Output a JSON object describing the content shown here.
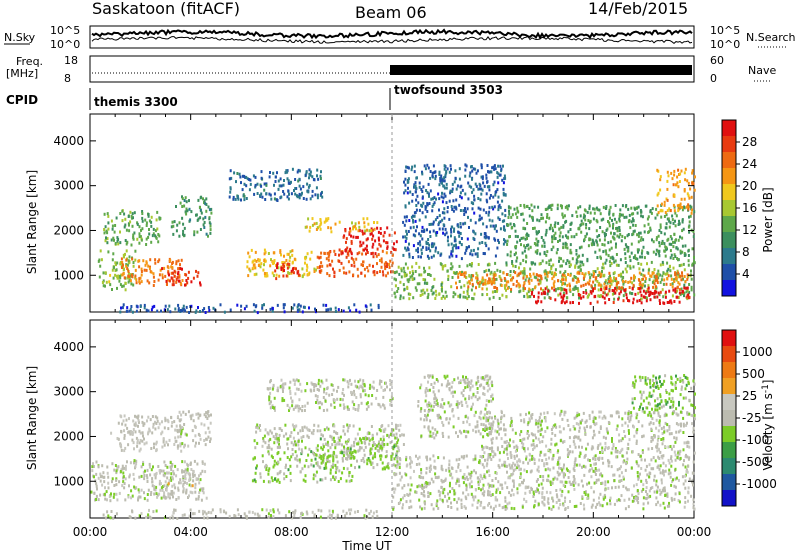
{
  "header": {
    "station": "Saskatoon (fitACF)",
    "beam": "Beam 06",
    "date": "14/Feb/2015"
  },
  "panels": {
    "nsky_label": "N.Sky",
    "nsearch_label": "N.Search",
    "nsky_ticks": [
      "10^5",
      "10^0"
    ],
    "nsearch_ticks": [
      "10^5",
      "10^0"
    ],
    "freq_label_1": "Freq.",
    "freq_label_2": "[MHz]",
    "freq_ticks": [
      "18",
      "8"
    ],
    "nave_label": "Nave",
    "nave_ticks": [
      "60",
      "0"
    ],
    "cpid_label": "CPID",
    "cpid_1": "themis 3300",
    "cpid_2": "twofsound 3503"
  },
  "axes": {
    "ylabel": "Slant Range [km]",
    "yticks": [
      "4000",
      "3000",
      "2000",
      "1000"
    ],
    "xticks": [
      "00:00",
      "04:00",
      "08:00",
      "12:00",
      "16:00",
      "20:00",
      "00:00"
    ],
    "xlabel": "Time UT"
  },
  "colors": {
    "power": [
      "#1212e0",
      "#1f4fa8",
      "#2c7a8c",
      "#3c8f5e",
      "#5ea84a",
      "#a8c832",
      "#f0c81e",
      "#f59614",
      "#ee6a12",
      "#e83a10",
      "#e01010"
    ],
    "velocity": [
      "#1212c8",
      "#1f58a0",
      "#2c8a70",
      "#3c9e46",
      "#7ccc28",
      "#bcbcb0",
      "#c8c8c0",
      "#f0a024",
      "#ee7a14",
      "#e84a10",
      "#e01010"
    ]
  },
  "chart_data": [
    {
      "type": "heatmap",
      "panel": "power",
      "x_range_hours": [
        0,
        24
      ],
      "ylim": [
        180,
        4600
      ],
      "colorbar_label": "Power [dB]",
      "colorbar_ticks": [
        "28",
        "24",
        "20",
        "16",
        "12",
        "8",
        "4"
      ],
      "clim": [
        0,
        30
      ],
      "regions": [
        {
          "t": [
            0.3,
            1.8
          ],
          "r": [
            700,
            1600
          ],
          "v": 14
        },
        {
          "t": [
            1.2,
            3.8
          ],
          "r": [
            800,
            1400
          ],
          "v": 22
        },
        {
          "t": [
            2.8,
            4.4
          ],
          "r": [
            800,
            1200
          ],
          "v": 27
        },
        {
          "t": [
            0.5,
            2.8
          ],
          "r": [
            1700,
            2500
          ],
          "v": 12
        },
        {
          "t": [
            3.2,
            4.8
          ],
          "r": [
            1900,
            2800
          ],
          "v": 10
        },
        {
          "t": [
            5.5,
            9.2
          ],
          "r": [
            2700,
            3400
          ],
          "v": 6
        },
        {
          "t": [
            6.2,
            9.0
          ],
          "r": [
            1000,
            1600
          ],
          "v": 18
        },
        {
          "t": [
            7.3,
            8.3
          ],
          "r": [
            950,
            1300
          ],
          "v": 27
        },
        {
          "t": [
            9.0,
            12.0
          ],
          "r": [
            1000,
            1600
          ],
          "v": 24
        },
        {
          "t": [
            10.0,
            12.2
          ],
          "r": [
            1500,
            2100
          ],
          "v": 28
        },
        {
          "t": [
            8.5,
            11.5
          ],
          "r": [
            2000,
            2300
          ],
          "v": 18
        },
        {
          "t": [
            12.0,
            24.0
          ],
          "r": [
            500,
            1300
          ],
          "v": 13
        },
        {
          "t": [
            14.5,
            23.8
          ],
          "r": [
            700,
            1100
          ],
          "v": 22
        },
        {
          "t": [
            17.5,
            23.8
          ],
          "r": [
            400,
            750
          ],
          "v": 29
        },
        {
          "t": [
            12.4,
            16.5
          ],
          "r": [
            1400,
            3500
          ],
          "v": 5
        },
        {
          "t": [
            16.5,
            24.0
          ],
          "r": [
            1300,
            2600
          ],
          "v": 11
        },
        {
          "t": [
            22.5,
            24.0
          ],
          "r": [
            2400,
            3400
          ],
          "v": 20
        },
        {
          "t": [
            1.0,
            11.5
          ],
          "r": [
            200,
            380
          ],
          "v": 4
        }
      ]
    },
    {
      "type": "heatmap",
      "panel": "velocity",
      "x_range_hours": [
        0,
        24
      ],
      "ylim": [
        180,
        4600
      ],
      "colorbar_label": "Velocity [m s^-1]",
      "colorbar_ticks": [
        "1000",
        "500",
        "25",
        "-25",
        "-100",
        "-500",
        "-1000"
      ],
      "clim": [
        -1200,
        1200
      ],
      "regions": [
        {
          "t": [
            0.0,
            4.6
          ],
          "r": [
            600,
            1500
          ],
          "v": 0
        },
        {
          "t": [
            2.5,
            4.3
          ],
          "r": [
            650,
            1300
          ],
          "v": 150
        },
        {
          "t": [
            0.8,
            3.6
          ],
          "r": [
            1700,
            2500
          ],
          "v": 120
        },
        {
          "t": [
            3.4,
            4.8
          ],
          "r": [
            1800,
            2600
          ],
          "v": 60
        },
        {
          "t": [
            6.4,
            10.5
          ],
          "r": [
            1000,
            1700
          ],
          "v": -150
        },
        {
          "t": [
            6.5,
            12.5
          ],
          "r": [
            1700,
            2300
          ],
          "v": -5
        },
        {
          "t": [
            9.0,
            12.2
          ],
          "r": [
            1300,
            2000
          ],
          "v": -160
        },
        {
          "t": [
            7.0,
            12.0
          ],
          "r": [
            2600,
            3300
          ],
          "v": 5
        },
        {
          "t": [
            12.0,
            24.0
          ],
          "r": [
            400,
            1600
          ],
          "v": 0
        },
        {
          "t": [
            15.5,
            24.0
          ],
          "r": [
            1600,
            2600
          ],
          "v": 0
        },
        {
          "t": [
            21.5,
            24.0
          ],
          "r": [
            2500,
            3400
          ],
          "v": -200
        },
        {
          "t": [
            13.0,
            16.0
          ],
          "r": [
            2000,
            3400
          ],
          "v": 8
        },
        {
          "t": [
            0.5,
            11.5
          ],
          "r": [
            200,
            400
          ],
          "v": 40
        }
      ]
    }
  ]
}
